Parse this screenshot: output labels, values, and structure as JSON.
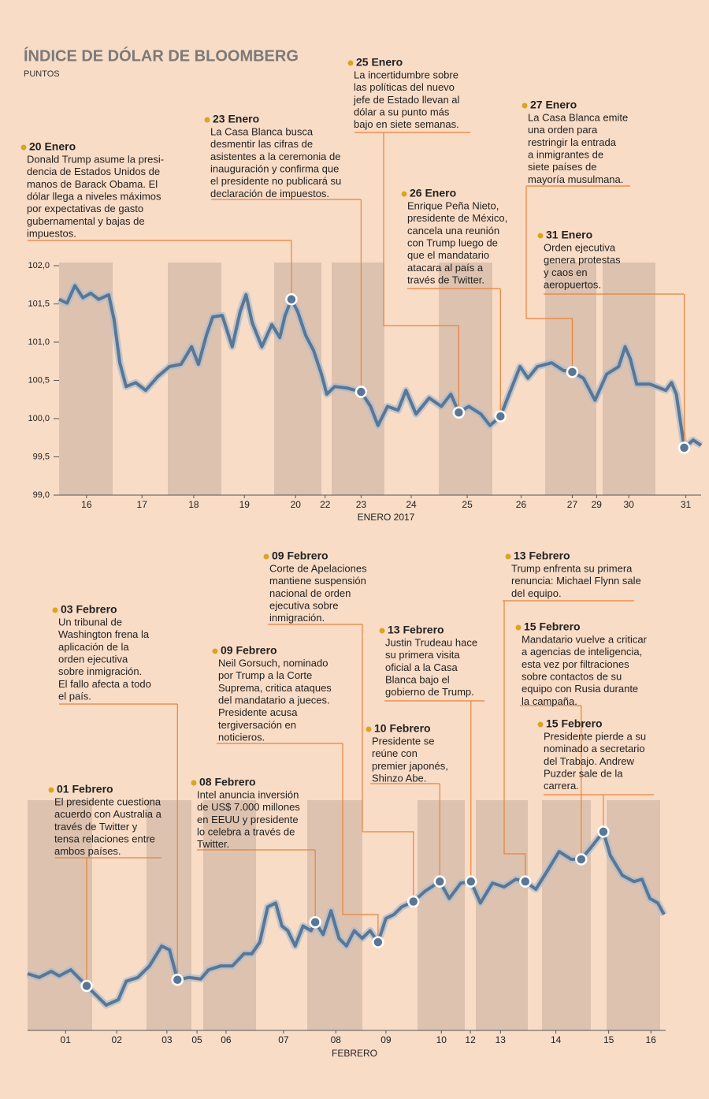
{
  "chart_data": [
    {
      "type": "line",
      "title": "ÍNDICE DE DÓLAR DE BLOOMBERG",
      "subtitle": "PUNTOS",
      "x_label": "ENERO 2017",
      "color": "#5a7694",
      "xlim": [
        0,
        12.16
      ],
      "ylim": [
        99,
        102
      ],
      "yticks": [
        {
          "value": 99,
          "label": "99,0"
        },
        {
          "value": 99.5,
          "label": "99,5"
        },
        {
          "value": 100,
          "label": "100,0"
        },
        {
          "value": 100.5,
          "label": "100,5"
        },
        {
          "value": 101,
          "label": "101,0"
        },
        {
          "value": 101.5,
          "label": "101,5"
        },
        {
          "value": 102,
          "label": "102,0"
        }
      ],
      "xticks": [
        {
          "value": 0.52,
          "label": "16"
        },
        {
          "value": 1.57,
          "label": "17"
        },
        {
          "value": 2.55,
          "label": "18"
        },
        {
          "value": 3.51,
          "label": "19"
        },
        {
          "value": 4.48,
          "label": "20"
        },
        {
          "value": 5.04,
          "label": "22"
        },
        {
          "value": 5.72,
          "label": "23"
        },
        {
          "value": 6.67,
          "label": "24"
        },
        {
          "value": 7.73,
          "label": "25"
        },
        {
          "value": 8.75,
          "label": "26"
        },
        {
          "value": 9.72,
          "label": "27"
        },
        {
          "value": 10.18,
          "label": "29"
        },
        {
          "value": 10.79,
          "label": "30"
        },
        {
          "value": 11.87,
          "label": "31"
        }
      ],
      "x": [
        0,
        0.15,
        0.3,
        0.45,
        0.6,
        0.75,
        0.94,
        1.04,
        1.15,
        1.27,
        1.45,
        1.64,
        1.87,
        2.09,
        2.31,
        2.51,
        2.64,
        2.79,
        2.91,
        3.09,
        3.28,
        3.43,
        3.54,
        3.66,
        3.84,
        4.03,
        4.18,
        4.28,
        4.4,
        4.52,
        4.67,
        4.82,
        4.97,
        5.07,
        5.22,
        5.45,
        5.72,
        5.9,
        6.04,
        6.22,
        6.42,
        6.57,
        6.76,
        7.01,
        7.24,
        7.42,
        7.57,
        7.76,
        7.99,
        8.16,
        8.36,
        8.58,
        8.73,
        8.88,
        9.06,
        9.33,
        9.55,
        9.72,
        9.93,
        10.15,
        10.37,
        10.6,
        10.72,
        10.82,
        10.94,
        11.19,
        11.49,
        11.6,
        11.69,
        11.84,
        12.01,
        12.16
      ],
      "values": [
        101.56,
        101.51,
        101.74,
        101.58,
        101.64,
        101.56,
        101.62,
        101.3,
        100.73,
        100.42,
        100.47,
        100.37,
        100.55,
        100.68,
        100.71,
        100.94,
        100.71,
        101.09,
        101.33,
        101.35,
        100.94,
        101.4,
        101.62,
        101.25,
        100.94,
        101.23,
        101.06,
        101.35,
        101.56,
        101.4,
        101.09,
        100.89,
        100.58,
        100.32,
        100.42,
        100.4,
        100.35,
        100.16,
        99.91,
        100.16,
        100.11,
        100.37,
        100.06,
        100.27,
        100.16,
        100.32,
        100.08,
        100.16,
        100.06,
        99.91,
        100.03,
        100.42,
        100.68,
        100.53,
        100.68,
        100.73,
        100.63,
        100.61,
        100.53,
        100.24,
        100.58,
        100.68,
        100.94,
        100.78,
        100.45,
        100.45,
        100.37,
        100.47,
        100.32,
        99.62,
        99.72,
        99.65
      ],
      "annotations": [
        {
          "date": "20 Enero",
          "text": [
            "Donald Trump asume la presi-",
            "dencia de Estados Unidos de",
            "manos de Barack Obama. El",
            "dólar llega a niveles máximos",
            "por expectativas de gasto",
            "gubernamental y bajas de",
            "impuestos."
          ],
          "x": 4.4,
          "y": 101.56
        },
        {
          "date": "23 Enero",
          "text": [
            "La Casa Blanca busca",
            "desmentir las cifras de",
            "asistentes a la ceremonia de",
            "inauguración y confirma que",
            "el presidente no publicará su",
            "declaración de impuestos."
          ],
          "x": 5.72,
          "y": 100.35
        },
        {
          "date": "25 Enero",
          "text": [
            "La incertidumbre sobre",
            "las políticas del nuevo",
            "jefe de Estado llevan al",
            "dólar a su punto más",
            "bajo en siete semanas."
          ],
          "x": 7.57,
          "y": 100.08
        },
        {
          "date": "26 Enero",
          "text": [
            "Enrique Peña Nieto,",
            "presidente de México,",
            "cancela una reunión",
            "con Trump luego de",
            "que el mandatario",
            "atacara al país a",
            "través de Twitter."
          ],
          "x": 8.36,
          "y": 100.03
        },
        {
          "date": "27 Enero",
          "text": [
            "La Casa Blanca emite",
            "una orden para",
            "restringir la entrada",
            "a inmigrantes de",
            "siete países de",
            "mayoría musulmana."
          ],
          "x": 9.72,
          "y": 100.61
        },
        {
          "date": "31 Enero",
          "text": [
            "Orden ejecutiva",
            "genera protestas",
            "y caos en",
            "aeropuertos."
          ],
          "x": 11.84,
          "y": 99.62
        }
      ]
    },
    {
      "type": "line",
      "x_label": "FEBRERO",
      "color": "#5a7694",
      "xlim": [
        0,
        12.09
      ],
      "ylim": [
        99,
        102
      ],
      "xticks": [
        {
          "value": 0.72,
          "label": "01"
        },
        {
          "value": 1.69,
          "label": "02"
        },
        {
          "value": 2.64,
          "label": "03"
        },
        {
          "value": 3.21,
          "label": "05"
        },
        {
          "value": 3.76,
          "label": "06"
        },
        {
          "value": 4.85,
          "label": "07"
        },
        {
          "value": 5.84,
          "label": "08"
        },
        {
          "value": 6.79,
          "label": "09"
        },
        {
          "value": 7.84,
          "label": "10"
        },
        {
          "value": 8.39,
          "label": "12"
        },
        {
          "value": 8.96,
          "label": "13"
        },
        {
          "value": 10.01,
          "label": "14"
        },
        {
          "value": 11.01,
          "label": "15"
        },
        {
          "value": 11.81,
          "label": "16"
        }
      ],
      "x": [
        0,
        0.22,
        0.45,
        0.6,
        0.82,
        1.12,
        1.34,
        1.49,
        1.72,
        1.87,
        2.09,
        2.31,
        2.54,
        2.69,
        2.84,
        3.06,
        3.28,
        3.43,
        3.66,
        3.88,
        4.1,
        4.25,
        4.4,
        4.55,
        4.7,
        4.82,
        4.93,
        5.07,
        5.22,
        5.37,
        5.45,
        5.6,
        5.75,
        5.9,
        6.04,
        6.19,
        6.34,
        6.49,
        6.64,
        6.79,
        6.94,
        7.09,
        7.31,
        7.54,
        7.81,
        7.99,
        8.21,
        8.4,
        8.58,
        8.81,
        9.03,
        9.25,
        9.43,
        9.63,
        9.85,
        10.07,
        10.3,
        10.49,
        10.67,
        10.91,
        11.04,
        11.27,
        11.49,
        11.64,
        11.79,
        11.94,
        12.06
      ],
      "values": [
        99.74,
        99.69,
        99.77,
        99.71,
        99.79,
        99.58,
        99.43,
        99.33,
        99.4,
        99.64,
        99.69,
        99.84,
        100.1,
        100.05,
        99.66,
        99.69,
        99.67,
        99.79,
        99.84,
        99.84,
        100,
        100,
        100.15,
        100.61,
        100.66,
        100.36,
        100.3,
        100.1,
        100.36,
        100.3,
        100.41,
        100.25,
        100.56,
        100.2,
        100.1,
        100.3,
        100.2,
        100.3,
        100.15,
        100.46,
        100.51,
        100.61,
        100.68,
        100.82,
        100.94,
        100.72,
        100.92,
        100.94,
        100.66,
        100.92,
        100.87,
        100.97,
        100.94,
        100.84,
        101.08,
        101.33,
        101.23,
        101.23,
        101.38,
        101.59,
        101.28,
        101.02,
        100.94,
        100.97,
        100.72,
        100.66,
        100.51
      ],
      "annotations": [
        {
          "date": "01 Febrero",
          "text": [
            "El presidente cuestiona",
            "acuerdo con Australia a",
            "través de Twitter y",
            "tensa relaciones entre",
            "ambos países."
          ],
          "x": 1.12,
          "y": 99.58
        },
        {
          "date": "03 Febrero",
          "text": [
            "Un tribunal de",
            "Washington frena la",
            "aplicación de la",
            "orden ejecutiva",
            "sobre inmigración.",
            "El fallo afecta a todo",
            "el país."
          ],
          "x": 2.84,
          "y": 99.66
        },
        {
          "date": "08 Febrero",
          "text": [
            "Intel anuncia inversión",
            "de US$ 7.000 millones",
            "en EEUU y presidente",
            "lo celebra a través de",
            "Twitter."
          ],
          "x": 5.45,
          "y": 100.41
        },
        {
          "date": "09 Febrero",
          "text": [
            "Neil Gorsuch, nominado",
            "por Trump a la Corte",
            "Suprema, critica ataques",
            "del mandatario a jueces.",
            "Presidente acusa",
            "tergiversación en",
            "noticieros."
          ],
          "x": 6.64,
          "y": 100.15
        },
        {
          "date": "09 Febrero",
          "text": [
            "Corte de Apelaciones",
            "mantiene suspensión",
            "nacional de orden",
            "ejecutiva sobre",
            "inmigración."
          ],
          "x": 7.31,
          "y": 100.68
        },
        {
          "date": "13 Febrero",
          "text": [
            "Justin Trudeau hace",
            "su primera visita",
            "oficial a la Casa",
            "Blanca bajo el",
            "gobierno de Trump."
          ],
          "x": 8.4,
          "y": 100.94
        },
        {
          "date": "10 Febrero",
          "text": [
            "Presidente se",
            "reúne con",
            "premier japonés,",
            "Shinzo Abe."
          ],
          "x": 7.81,
          "y": 100.94
        },
        {
          "date": "13 Febrero",
          "text": [
            "Trump enfrenta su primera",
            "renuncia: Michael Flynn sale",
            "del equipo."
          ],
          "x": 9.43,
          "y": 100.94
        },
        {
          "date": "15 Febrero",
          "text": [
            "Mandatario vuelve a criticar",
            "a agencias de inteligencia,",
            "esta vez por filtraciones",
            "sobre contactos de su",
            "equipo con Rusia durante",
            "la campaña."
          ],
          "x": 10.49,
          "y": 101.23
        },
        {
          "date": "15 Febrero",
          "text": [
            "Presidente pierde a su",
            "nominado a secretario",
            "del Trabajo. Andrew",
            "Puzder sale de la",
            "carrera."
          ],
          "x": 10.91,
          "y": 101.59
        }
      ]
    }
  ]
}
